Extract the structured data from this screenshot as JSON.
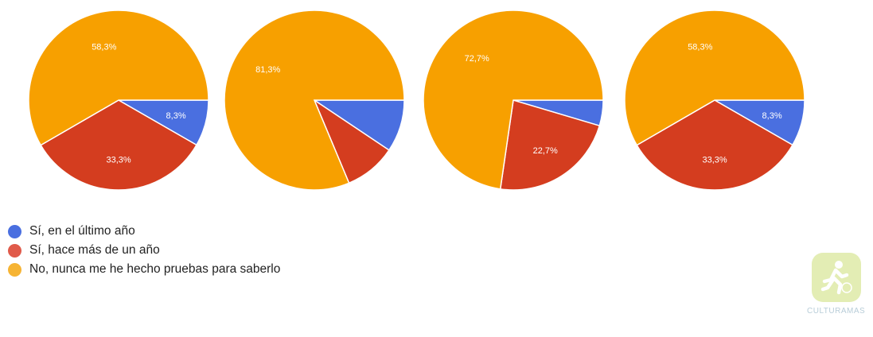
{
  "colors": {
    "blue": "#4a6fe0",
    "red": "#d43d1f",
    "orange": "#f7a000"
  },
  "chart_data": [
    {
      "type": "pie",
      "slices": [
        {
          "series": 0,
          "value": 8.3,
          "label": "8,3%"
        },
        {
          "series": 1,
          "value": 33.3,
          "label": "33,3%"
        },
        {
          "series": 2,
          "value": 58.3,
          "label": "58,3%"
        }
      ]
    },
    {
      "type": "pie",
      "slices": [
        {
          "series": 0,
          "value": 9.4,
          "label": ""
        },
        {
          "series": 1,
          "value": 9.3,
          "label": ""
        },
        {
          "series": 2,
          "value": 81.3,
          "label": "81,3%"
        }
      ]
    },
    {
      "type": "pie",
      "slices": [
        {
          "series": 0,
          "value": 4.6,
          "label": ""
        },
        {
          "series": 1,
          "value": 22.7,
          "label": "22,7%"
        },
        {
          "series": 2,
          "value": 72.7,
          "label": "72,7%"
        }
      ]
    },
    {
      "type": "pie",
      "slices": [
        {
          "series": 0,
          "value": 8.3,
          "label": "8,3%"
        },
        {
          "series": 1,
          "value": 33.3,
          "label": "33,3%"
        },
        {
          "series": 2,
          "value": 58.3,
          "label": "58,3%"
        }
      ]
    }
  ],
  "legend": [
    {
      "label": "Sí, en el último año",
      "color": "#4a6fe0"
    },
    {
      "label": "Sí, hace más de un año",
      "color": "#d43d1f"
    },
    {
      "label": "No, nunca me he hecho pruebas para saberlo",
      "color": "#f7a000"
    }
  ],
  "logo": {
    "icon": "running-figure-icon",
    "text": "CULTURAMAS"
  }
}
